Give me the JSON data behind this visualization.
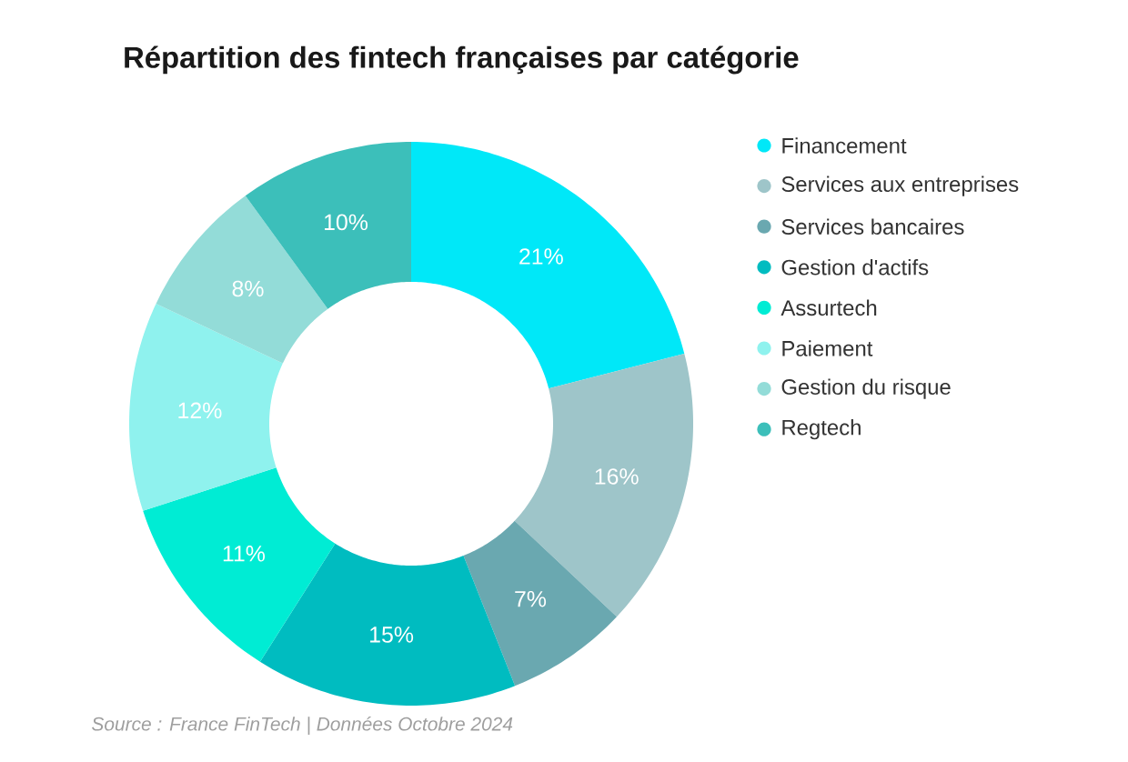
{
  "chart_data": {
    "type": "donut",
    "title": "Répartition des fintech françaises par catégorie",
    "categories": [
      "Financement",
      "Services aux entreprises",
      "Services bancaires",
      "Gestion d'actifs",
      "Assurtech",
      "Paiement",
      "Gestion du risque",
      "Regtech"
    ],
    "values": [
      21,
      16,
      7,
      15,
      11,
      12,
      8,
      10
    ],
    "value_labels": [
      "21%",
      "16%",
      "7%",
      "15%",
      "11%",
      "12%",
      "8%",
      "10%"
    ],
    "colors": [
      "#00e8f8",
      "#9ec5c9",
      "#6aa8b0",
      "#00bcc0",
      "#00ecd4",
      "#8ff2ee",
      "#93dcd8",
      "#3cbfba"
    ],
    "legend": "right",
    "annotations": [
      "Source : France FinTech | Données Octobre 2024"
    ]
  }
}
